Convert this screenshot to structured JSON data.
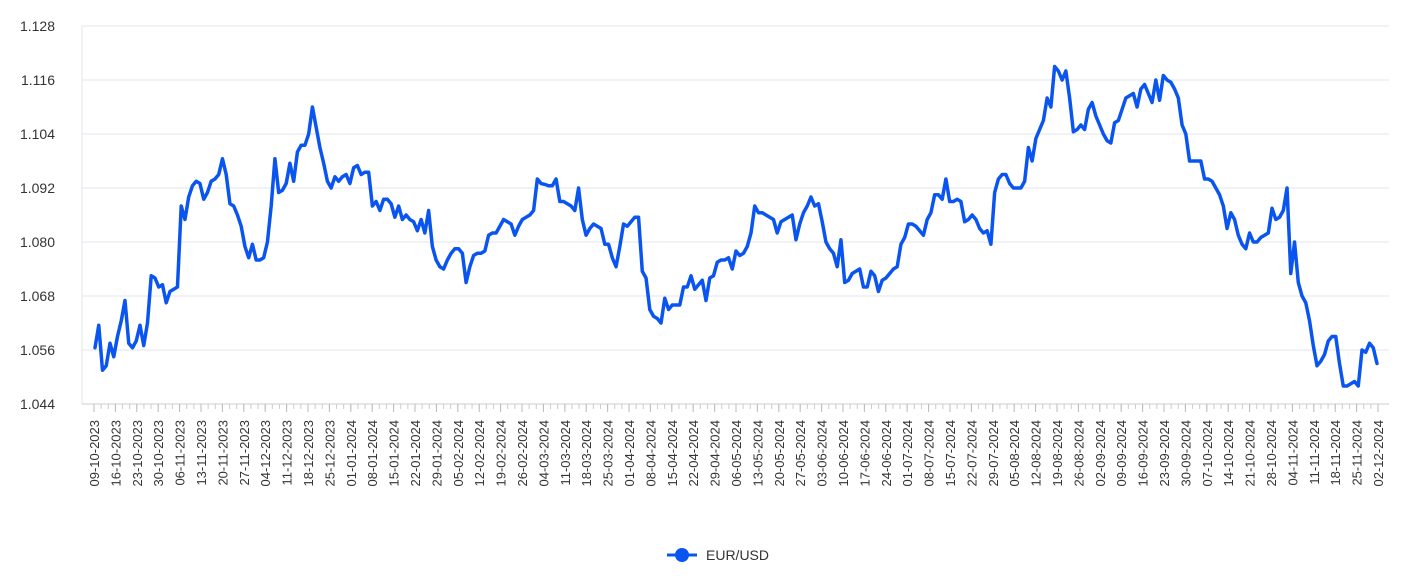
{
  "chart_data": {
    "type": "line",
    "title": "",
    "xlabel": "",
    "ylabel": "",
    "ylim": [
      1.044,
      1.128
    ],
    "yticks": [
      "1.044",
      "1.056",
      "1.068",
      "1.080",
      "1.092",
      "1.104",
      "1.116",
      "1.128"
    ],
    "x_tick_labels": [
      "09-10-2023",
      "16-10-2023",
      "23-10-2023",
      "30-10-2023",
      "06-11-2023",
      "13-11-2023",
      "20-11-2023",
      "27-11-2023",
      "04-12-2023",
      "11-12-2023",
      "18-12-2023",
      "25-12-2023",
      "01-01-2024",
      "08-01-2024",
      "15-01-2024",
      "22-01-2024",
      "29-01-2024",
      "05-02-2024",
      "12-02-2024",
      "19-02-2024",
      "26-02-2024",
      "04-03-2024",
      "11-03-2024",
      "18-03-2024",
      "25-03-2024",
      "01-04-2024",
      "08-04-2024",
      "15-04-2024",
      "22-04-2024",
      "29-04-2024",
      "06-05-2024",
      "13-05-2024",
      "20-05-2024",
      "27-05-2024",
      "03-06-2024",
      "10-06-2024",
      "17-06-2024",
      "24-06-2024",
      "01-07-2024",
      "08-07-2024",
      "15-07-2024",
      "22-07-2024",
      "29-07-2024",
      "05-08-2024",
      "12-08-2024",
      "19-08-2024",
      "26-08-2024",
      "02-09-2024",
      "09-09-2024",
      "16-09-2024",
      "23-09-2024",
      "30-09-2024",
      "07-10-2024",
      "14-10-2024",
      "21-10-2024",
      "28-10-2024",
      "04-11-2024",
      "11-11-2024",
      "18-11-2024",
      "25-11-2024",
      "02-12-2024"
    ],
    "grid": true,
    "legend_position": "bottom-center",
    "series": [
      {
        "name": "EUR/USD",
        "color": "#0a55f0",
        "values": [
          1.0565,
          1.0615,
          1.0515,
          1.0525,
          1.0575,
          1.0545,
          1.059,
          1.0625,
          1.067,
          1.0575,
          1.0565,
          1.058,
          1.0615,
          1.057,
          1.062,
          1.0725,
          1.072,
          1.07,
          1.0705,
          1.0665,
          1.069,
          1.0695,
          1.07,
          1.088,
          1.085,
          1.09,
          1.0925,
          1.0935,
          1.093,
          1.0895,
          1.091,
          1.0935,
          1.094,
          1.095,
          1.0985,
          1.095,
          1.0885,
          1.088,
          1.086,
          1.0835,
          1.079,
          1.0765,
          1.0795,
          1.076,
          1.076,
          1.0765,
          1.08,
          1.088,
          1.0985,
          1.091,
          1.0915,
          1.093,
          1.0975,
          1.0935,
          1.1,
          1.1015,
          1.1015,
          1.104,
          1.11,
          1.1055,
          1.101,
          1.0975,
          1.0935,
          1.092,
          1.0945,
          1.0935,
          1.0945,
          1.095,
          1.093,
          1.0965,
          1.097,
          1.095,
          1.0955,
          1.0955,
          1.088,
          1.089,
          1.087,
          1.0895,
          1.0895,
          1.0885,
          1.0855,
          1.088,
          1.085,
          1.086,
          1.085,
          1.0845,
          1.0825,
          1.085,
          1.082,
          1.087,
          1.079,
          1.076,
          1.0745,
          1.074,
          1.076,
          1.0775,
          1.0785,
          1.0785,
          1.0775,
          1.071,
          1.0745,
          1.077,
          1.0775,
          1.0775,
          1.078,
          1.0815,
          1.082,
          1.082,
          1.0835,
          1.085,
          1.0845,
          1.084,
          1.0815,
          1.0835,
          1.085,
          1.0855,
          1.086,
          1.087,
          1.094,
          1.093,
          1.0928,
          1.0925,
          1.0925,
          1.094,
          1.089,
          1.089,
          1.0885,
          1.088,
          1.087,
          1.092,
          1.085,
          1.0815,
          1.083,
          1.084,
          1.0835,
          1.083,
          1.0795,
          1.0795,
          1.0765,
          1.0745,
          1.079,
          1.084,
          1.0835,
          1.0845,
          1.0855,
          1.0855,
          1.0735,
          1.072,
          1.065,
          1.0635,
          1.063,
          1.062,
          1.0675,
          1.065,
          1.066,
          1.066,
          1.066,
          1.07,
          1.07,
          1.0725,
          1.0695,
          1.0705,
          1.0715,
          1.067,
          1.072,
          1.0725,
          1.0755,
          1.076,
          1.076,
          1.0765,
          1.074,
          1.078,
          1.077,
          1.0775,
          1.079,
          1.082,
          1.088,
          1.0865,
          1.0865,
          1.086,
          1.0855,
          1.085,
          1.082,
          1.0845,
          1.085,
          1.0855,
          1.086,
          1.0805,
          1.084,
          1.0865,
          1.088,
          1.09,
          1.088,
          1.0885,
          1.0845,
          1.08,
          1.0785,
          1.0775,
          1.0745,
          1.0805,
          1.071,
          1.0715,
          1.073,
          1.0735,
          1.074,
          1.07,
          1.07,
          1.0735,
          1.0725,
          1.069,
          1.0715,
          1.072,
          1.073,
          1.074,
          1.0745,
          1.0795,
          1.081,
          1.084,
          1.084,
          1.0835,
          1.0825,
          1.0815,
          1.085,
          1.0865,
          1.0905,
          1.0905,
          1.0895,
          1.094,
          1.089,
          1.089,
          1.0895,
          1.089,
          1.0845,
          1.085,
          1.086,
          1.085,
          1.083,
          1.082,
          1.0825,
          1.0795,
          1.091,
          1.094,
          1.095,
          1.095,
          1.093,
          1.092,
          1.092,
          1.092,
          1.0935,
          1.101,
          1.098,
          1.103,
          1.105,
          1.107,
          1.112,
          1.11,
          1.119,
          1.118,
          1.116,
          1.118,
          1.112,
          1.1045,
          1.105,
          1.106,
          1.105,
          1.1095,
          1.111,
          1.108,
          1.106,
          1.104,
          1.1025,
          1.102,
          1.1065,
          1.107,
          1.1095,
          1.112,
          1.1125,
          1.113,
          1.11,
          1.114,
          1.115,
          1.113,
          1.111,
          1.116,
          1.1115,
          1.117,
          1.116,
          1.1155,
          1.114,
          1.112,
          1.106,
          1.104,
          1.098,
          1.098,
          1.098,
          1.098,
          1.094,
          1.094,
          1.0935,
          1.092,
          1.0905,
          1.088,
          1.083,
          1.0865,
          1.085,
          1.0815,
          1.0795,
          1.0785,
          1.082,
          1.08,
          1.08,
          1.081,
          1.0815,
          1.082,
          1.0875,
          1.085,
          1.0855,
          1.087,
          1.092,
          1.073,
          1.08,
          1.071,
          1.068,
          1.0665,
          1.0625,
          1.057,
          1.0525,
          1.0535,
          1.055,
          1.058,
          1.059,
          1.059,
          1.053,
          1.048,
          1.048,
          1.0485,
          1.049,
          1.048,
          1.056,
          1.0555,
          1.0575,
          1.0565,
          1.053
        ]
      }
    ]
  }
}
